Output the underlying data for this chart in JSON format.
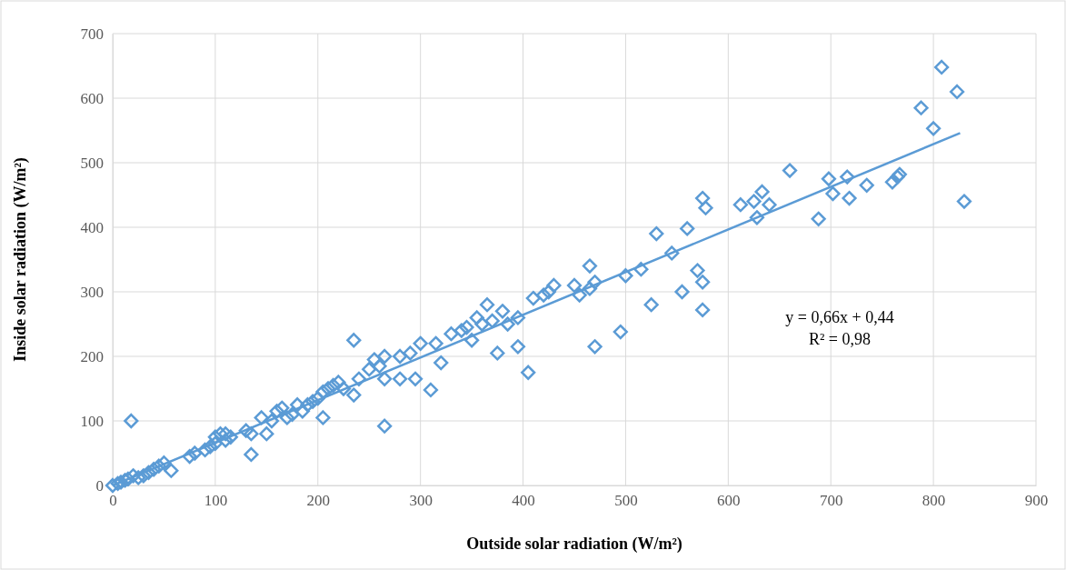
{
  "chart_data": {
    "type": "scatter",
    "xlabel": "Outside solar radiation (W/m²)",
    "ylabel": "Inside  solar radiation (W/m²)",
    "xlim": [
      0,
      900
    ],
    "xticks": [
      0,
      100,
      200,
      300,
      400,
      500,
      600,
      700,
      800,
      900
    ],
    "ylim": [
      0,
      700
    ],
    "yticks": [
      0,
      100,
      200,
      300,
      400,
      500,
      600,
      700
    ],
    "grid": true,
    "marker": "diamond",
    "annotations": [
      "y = 0,66x + 0,44",
      "R² = 0,98"
    ],
    "series": [
      {
        "color": "#5b9bd5",
        "x": [
          0,
          5,
          8,
          12,
          15,
          20,
          18,
          25,
          30,
          35,
          40,
          45,
          50,
          57,
          75,
          80,
          90,
          95,
          100,
          100,
          105,
          110,
          115,
          110,
          130,
          135,
          135,
          145,
          150,
          155,
          160,
          165,
          170,
          175,
          180,
          185,
          190,
          195,
          200,
          205,
          205,
          210,
          215,
          220,
          225,
          235,
          235,
          240,
          250,
          255,
          260,
          265,
          265,
          265,
          280,
          280,
          290,
          295,
          300,
          310,
          315,
          320,
          330,
          340,
          345,
          350,
          355,
          360,
          365,
          370,
          375,
          380,
          385,
          395,
          395,
          405,
          410,
          420,
          425,
          430,
          450,
          455,
          465,
          470,
          470,
          465,
          495,
          500,
          515,
          525,
          530,
          545,
          555,
          560,
          570,
          575,
          578,
          575,
          575,
          612,
          625,
          628,
          633,
          640,
          660,
          688,
          698,
          702,
          716,
          718,
          735,
          760,
          765,
          767,
          788,
          800,
          808,
          823,
          830
        ],
        "values": [
          0,
          3,
          5,
          8,
          10,
          15,
          100,
          12,
          15,
          20,
          25,
          30,
          35,
          23,
          45,
          50,
          55,
          60,
          65,
          75,
          80,
          80,
          75,
          70,
          85,
          80,
          48,
          105,
          80,
          100,
          115,
          120,
          105,
          110,
          125,
          115,
          125,
          130,
          135,
          145,
          105,
          150,
          155,
          160,
          150,
          225,
          140,
          165,
          180,
          195,
          185,
          200,
          165,
          92,
          200,
          165,
          205,
          165,
          220,
          148,
          220,
          190,
          235,
          240,
          245,
          225,
          260,
          250,
          280,
          255,
          205,
          270,
          250,
          260,
          215,
          175,
          290,
          295,
          300,
          310,
          310,
          295,
          340,
          315,
          215,
          305,
          238,
          325,
          335,
          280,
          390,
          360,
          300,
          398,
          333,
          445,
          430,
          315,
          272,
          435,
          440,
          415,
          455,
          435,
          488,
          413,
          475,
          452,
          478,
          445,
          465,
          470,
          478,
          482,
          585,
          553,
          648,
          610,
          440
        ]
      },
      {
        "type": "line",
        "color": "#5b9bd5",
        "marker": "none",
        "x": [
          0,
          826
        ],
        "values": [
          0,
          546
        ]
      }
    ]
  }
}
